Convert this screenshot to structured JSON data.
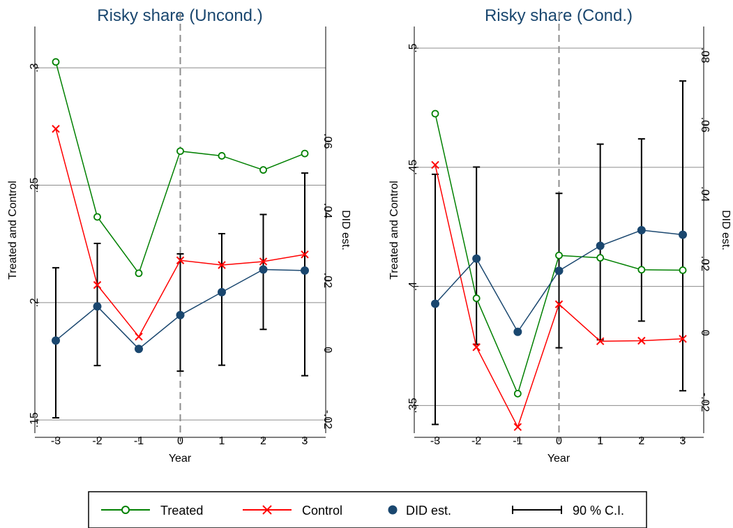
{
  "legend": {
    "items": [
      {
        "label": "Treated",
        "color": "#008000",
        "marker": "hollow-circle"
      },
      {
        "label": "Control",
        "color": "#ff0000",
        "marker": "x"
      },
      {
        "label": "DID est.",
        "color": "#1a476f",
        "marker": "filled-circle"
      },
      {
        "label": "90 % C.I.",
        "color": "#000000",
        "marker": "capped-bar"
      }
    ]
  },
  "chart_data": [
    {
      "type": "line",
      "title": "Risky share (Uncond.)",
      "xlabel": "Year",
      "ylabel": "Treated and Control",
      "y2label": "DID est.",
      "x": [
        -3,
        -2,
        -1,
        0,
        1,
        2,
        3
      ],
      "xticks": [
        "-3",
        "-2",
        "-1",
        "0",
        "1",
        "2",
        "3"
      ],
      "ylim": [
        0.145,
        0.317
      ],
      "yticks": [
        ".15",
        ".2",
        ".25",
        ".3"
      ],
      "y2lim": [
        -0.0235,
        0.0925
      ],
      "y2ticks": [
        "-.02",
        "0",
        ".02",
        ".04",
        ".06"
      ],
      "vline_x": 0,
      "series": [
        {
          "name": "Treated",
          "axis": "left",
          "color": "#008000",
          "marker": "hollow-circle",
          "values": [
            0.3025,
            0.2365,
            0.2125,
            0.2645,
            0.2625,
            0.2565,
            0.2635
          ]
        },
        {
          "name": "Control",
          "axis": "left",
          "color": "#ff0000",
          "marker": "x",
          "values": [
            0.274,
            0.2075,
            0.1855,
            0.218,
            0.216,
            0.2175,
            0.2205
          ]
        },
        {
          "name": "DID est.",
          "axis": "right",
          "color": "#1a476f",
          "marker": "filled-circle",
          "values": [
            0.0027,
            0.0125,
            0.0003,
            0.01,
            0.0166,
            0.0231,
            0.0228
          ],
          "ci_low": [
            -0.0195,
            -0.0045,
            0.0003,
            -0.0061,
            -0.0044,
            0.0059,
            -0.0074
          ],
          "ci_high": [
            0.0236,
            0.0306,
            0.0003,
            0.0276,
            0.0334,
            0.0389,
            0.0508
          ]
        }
      ]
    },
    {
      "type": "line",
      "title": "Risky share (Cond.)",
      "xlabel": "Year",
      "ylabel": "Treated and Control",
      "y2label": "DID est.",
      "x": [
        -3,
        -2,
        -1,
        0,
        1,
        2,
        3
      ],
      "xticks": [
        "-3",
        "-2",
        "-1",
        "0",
        "1",
        "2",
        "3"
      ],
      "ylim": [
        0.339,
        0.5085
      ],
      "yticks": [
        ".35",
        ".4",
        ".45",
        ".5"
      ],
      "y2lim": [
        -0.0285,
        0.0879
      ],
      "y2ticks": [
        "-.02",
        "0",
        ".02",
        ".04",
        ".06",
        ".08"
      ],
      "vline_x": 0,
      "series": [
        {
          "name": "Treated",
          "axis": "left",
          "color": "#008000",
          "marker": "hollow-circle",
          "values": [
            0.4725,
            0.395,
            0.355,
            0.413,
            0.412,
            0.407,
            0.4068
          ]
        },
        {
          "name": "Control",
          "axis": "left",
          "color": "#ff0000",
          "marker": "x",
          "values": [
            0.451,
            0.3745,
            0.341,
            0.3925,
            0.377,
            0.3772,
            0.378
          ]
        },
        {
          "name": "DID est.",
          "axis": "right",
          "color": "#1a476f",
          "marker": "filled-circle",
          "values": [
            0.0084,
            0.0214,
            0.0003,
            0.0179,
            0.0251,
            0.0296,
            0.0283
          ],
          "ci_low": [
            -0.0264,
            -0.0033,
            0.0003,
            -0.0043,
            -0.002,
            0.0034,
            -0.0167
          ],
          "ci_high": [
            0.0457,
            0.0478,
            0.0003,
            0.0402,
            0.0544,
            0.0559,
            0.0726
          ]
        }
      ]
    }
  ]
}
